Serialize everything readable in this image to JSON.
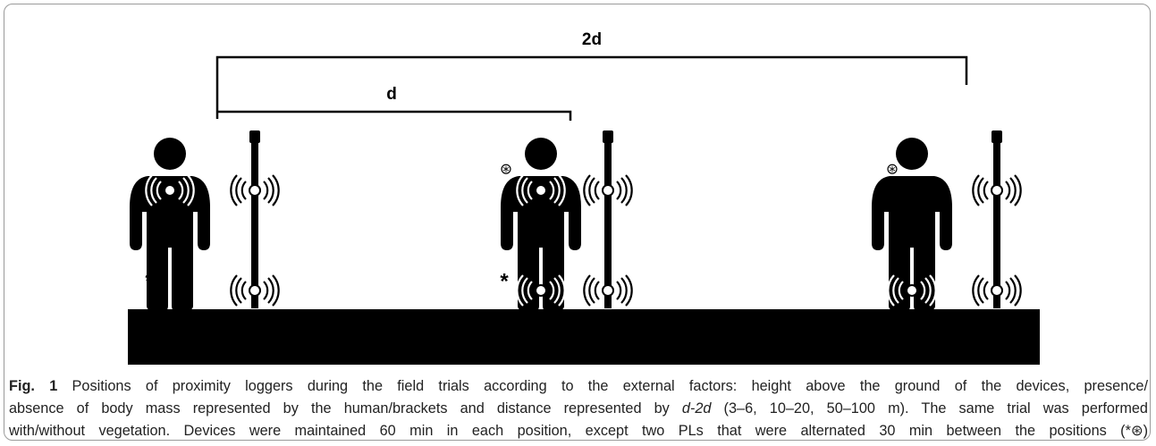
{
  "figure": {
    "labels": [
      "2d",
      "d"
    ],
    "markers": [
      "*",
      "*",
      "⊛",
      "⊛"
    ]
  },
  "caption": {
    "label": "Fig. 1",
    "lines": [
      " Positions of proximity loggers during the field trials according to the external factors: height above the ground of the devices, presence/",
      "absence of body mass represented by the human/brackets and distance represented by ",
      "d-2d",
      " (3–6, 10–20, 50–100 m). The same trial was performed",
      "with/without vegetation. Devices were maintained 60 min in each position, except two PLs that were alternated 30 min between the positions (*⊛)"
    ]
  }
}
